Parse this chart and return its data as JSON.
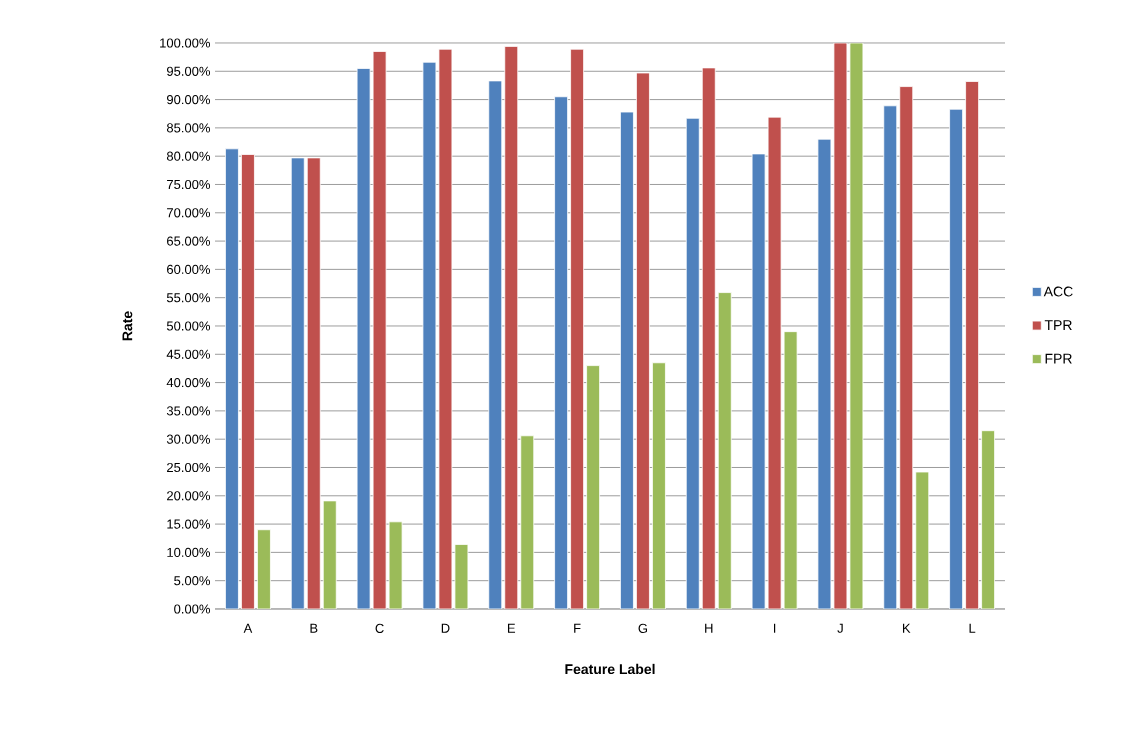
{
  "chart_data": {
    "type": "bar",
    "xlabel": "Feature Label",
    "ylabel": "Rate",
    "categories": [
      "A",
      "B",
      "C",
      "D",
      "E",
      "F",
      "G",
      "H",
      "I",
      "J",
      "K",
      "L"
    ],
    "series": [
      {
        "name": "ACC",
        "color": "#4f81bd",
        "values": [
          81.3,
          79.7,
          95.5,
          96.6,
          93.3,
          90.5,
          87.8,
          86.7,
          80.4,
          83.0,
          88.9,
          88.3
        ]
      },
      {
        "name": "TPR",
        "color": "#c0504d",
        "values": [
          80.3,
          79.7,
          98.5,
          98.9,
          99.4,
          98.9,
          94.7,
          95.6,
          86.9,
          100,
          92.3,
          93.2
        ]
      },
      {
        "name": "FPR",
        "color": "#9bbb59",
        "values": [
          14.0,
          19.1,
          15.4,
          11.4,
          30.6,
          43.0,
          43.5,
          55.9,
          49.0,
          100,
          24.2,
          31.5
        ]
      }
    ],
    "ylim": [
      0,
      100
    ],
    "yticks": [
      {
        "value": 0,
        "label": "0.00%"
      },
      {
        "value": 5,
        "label": "5.00%"
      },
      {
        "value": 10,
        "label": "10.00%"
      },
      {
        "value": 15,
        "label": "15.00%"
      },
      {
        "value": 20,
        "label": "20.00%"
      },
      {
        "value": 25,
        "label": "25.00%"
      },
      {
        "value": 30,
        "label": "30.00%"
      },
      {
        "value": 35,
        "label": "35.00%"
      },
      {
        "value": 40,
        "label": "40.00%"
      },
      {
        "value": 45,
        "label": "45.00%"
      },
      {
        "value": 50,
        "label": "50.00%"
      },
      {
        "value": 55,
        "label": "55.00%"
      },
      {
        "value": 60,
        "label": "60.00%"
      },
      {
        "value": 65,
        "label": "65.00%"
      },
      {
        "value": 70,
        "label": "70.00%"
      },
      {
        "value": 75,
        "label": "75.00%"
      },
      {
        "value": 80,
        "label": "80.00%"
      },
      {
        "value": 85,
        "label": "85.00%"
      },
      {
        "value": 90,
        "label": "90.00%"
      },
      {
        "value": 95,
        "label": "95.00%"
      },
      {
        "value": 100,
        "label": "100.00%"
      }
    ],
    "grid": "y",
    "legend": "right"
  }
}
